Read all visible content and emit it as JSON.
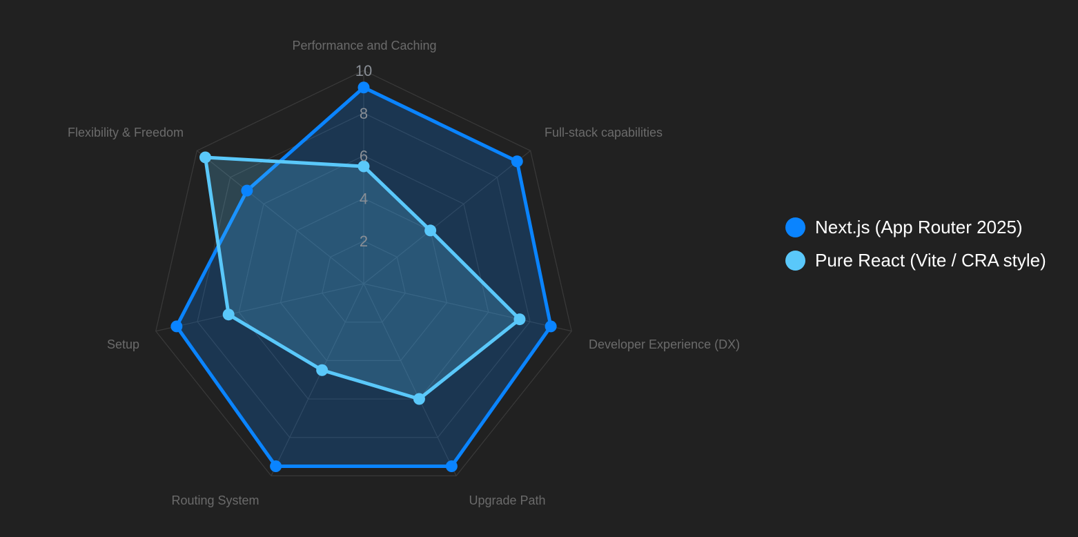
{
  "chart_data": {
    "type": "radar",
    "title": "",
    "axes": [
      "Performance and Caching",
      "Full-stack capabilities",
      "Developer Experience (DX)",
      "Upgrade Path",
      "Routing System",
      "Setup",
      "Flexibility & Freedom"
    ],
    "r_ticks": [
      "2",
      "4",
      "6",
      "8",
      "10"
    ],
    "r_range": [
      0,
      10
    ],
    "legend_position": "right",
    "series": [
      {
        "name": "Next.js (App Router 2025)",
        "color": "#0a84ff",
        "values": [
          9.2,
          9.2,
          9.0,
          9.5,
          9.5,
          9.0,
          7.0
        ]
      },
      {
        "name": "Pure React (Vite / CRA style)",
        "color": "#5ac8fa",
        "values": [
          5.5,
          4.0,
          7.5,
          6.0,
          4.5,
          6.5,
          9.5
        ]
      }
    ]
  },
  "legend": {
    "items": [
      {
        "label": "Next.js (App Router 2025)",
        "color": "#0a84ff"
      },
      {
        "label": "Pure React (Vite / CRA style)",
        "color": "#5ac8fa"
      }
    ]
  },
  "colors": {
    "background": "#212121",
    "grid": "#3a3a3a",
    "axis_label": "#6b6b6b"
  }
}
